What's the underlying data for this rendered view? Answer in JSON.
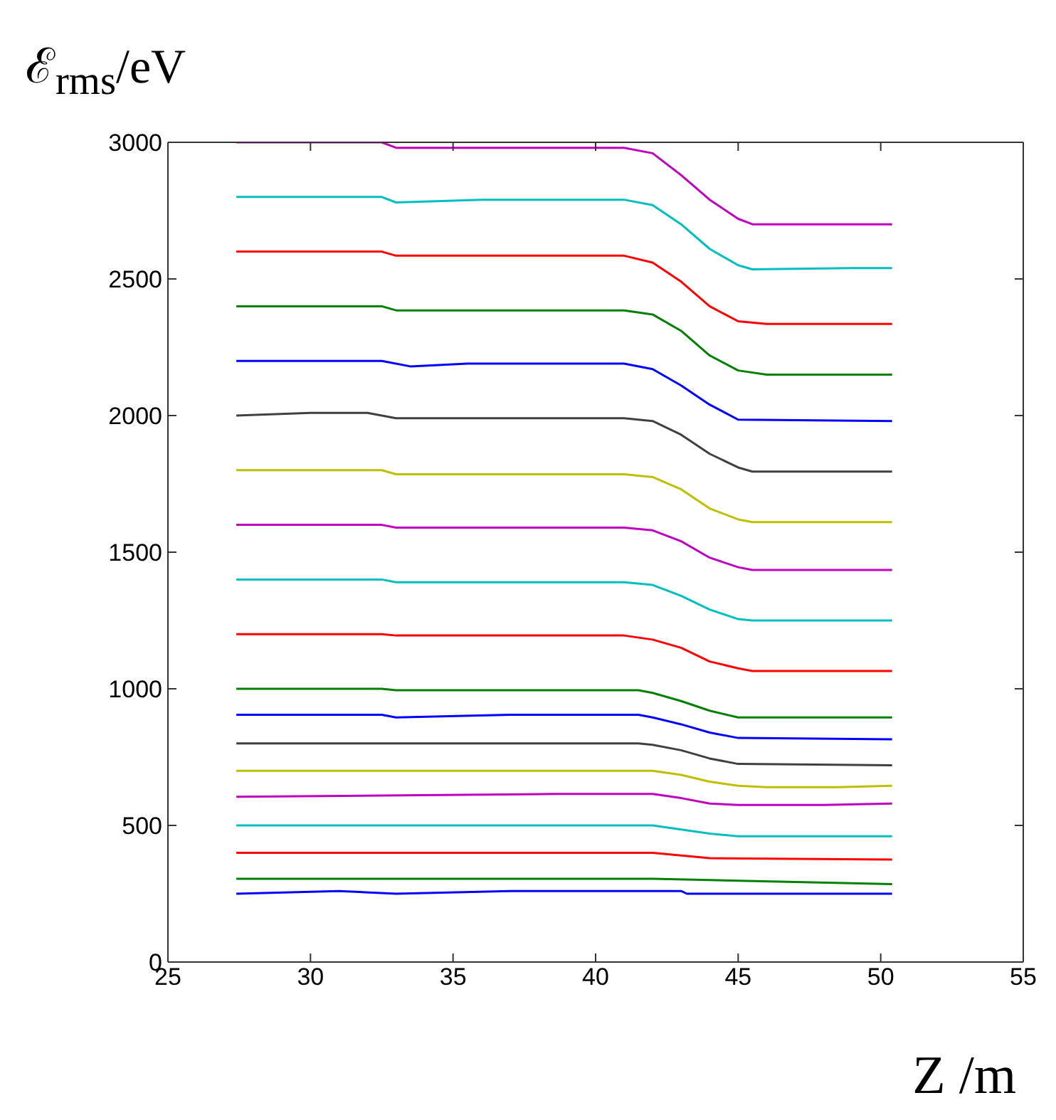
{
  "chart_data": {
    "type": "line",
    "ylabel": "ℰ$_{rms}$/eV",
    "xlabel": "Z /m",
    "xlim": [
      25,
      55
    ],
    "xticks": [
      25,
      30,
      35,
      40,
      45,
      50,
      55
    ],
    "ylim": [
      0,
      3000
    ],
    "yticks": [
      0,
      500,
      1000,
      1500,
      2000,
      2500,
      3000
    ],
    "marker": "none",
    "line_style": "solid",
    "series": [
      {
        "color": "#bf00bf",
        "x": [
          27.4,
          32.5,
          33,
          41,
          42,
          43,
          44,
          45,
          45.5,
          50.4
        ],
        "values": [
          3000,
          3000,
          2980,
          2980,
          2960,
          2880,
          2790,
          2720,
          2700,
          2700
        ]
      },
      {
        "color": "#00bfbf",
        "x": [
          27.4,
          32.5,
          33,
          36,
          41,
          42,
          43,
          44,
          45,
          45.5,
          49,
          50.4
        ],
        "values": [
          2800,
          2800,
          2780,
          2790,
          2790,
          2770,
          2700,
          2610,
          2550,
          2535,
          2540,
          2540
        ]
      },
      {
        "color": "#ff0000",
        "x": [
          27.4,
          32.5,
          33,
          41,
          42,
          43,
          44,
          45,
          46,
          50.4
        ],
        "values": [
          2600,
          2600,
          2585,
          2585,
          2560,
          2490,
          2400,
          2345,
          2335,
          2335
        ]
      },
      {
        "color": "#008000",
        "x": [
          27.4,
          32.5,
          33,
          41,
          42,
          43,
          44,
          45,
          46,
          50.4
        ],
        "values": [
          2400,
          2400,
          2385,
          2385,
          2370,
          2310,
          2220,
          2165,
          2150,
          2150
        ]
      },
      {
        "color": "#0000ff",
        "x": [
          27.4,
          32.5,
          33.5,
          35.5,
          41,
          42,
          43,
          44,
          45,
          50.4
        ],
        "values": [
          2200,
          2200,
          2180,
          2190,
          2190,
          2170,
          2110,
          2040,
          1985,
          1980
        ]
      },
      {
        "color": "#404040",
        "x": [
          27.4,
          30,
          32,
          33,
          41,
          42,
          43,
          44,
          45,
          45.5,
          50.4
        ],
        "values": [
          2000,
          2010,
          2010,
          1990,
          1990,
          1980,
          1930,
          1860,
          1810,
          1795,
          1795
        ]
      },
      {
        "color": "#bfbf00",
        "x": [
          27.4,
          32.5,
          33,
          41,
          42,
          43,
          44,
          45,
          45.5,
          50.4
        ],
        "values": [
          1800,
          1800,
          1785,
          1785,
          1775,
          1730,
          1660,
          1620,
          1610,
          1610
        ]
      },
      {
        "color": "#bf00bf",
        "x": [
          27.4,
          32.5,
          33,
          41,
          42,
          43,
          44,
          45,
          45.5,
          50.4
        ],
        "values": [
          1600,
          1600,
          1590,
          1590,
          1580,
          1540,
          1480,
          1445,
          1435,
          1435
        ]
      },
      {
        "color": "#00bfbf",
        "x": [
          27.4,
          32.5,
          33,
          41,
          42,
          43,
          44,
          45,
          45.5,
          50.4
        ],
        "values": [
          1400,
          1400,
          1390,
          1390,
          1380,
          1340,
          1290,
          1255,
          1250,
          1250
        ]
      },
      {
        "color": "#ff0000",
        "x": [
          27.4,
          32.5,
          33,
          41,
          42,
          43,
          44,
          45,
          45.5,
          50.4
        ],
        "values": [
          1200,
          1200,
          1195,
          1195,
          1180,
          1150,
          1100,
          1075,
          1065,
          1065
        ]
      },
      {
        "color": "#008000",
        "x": [
          27.4,
          32.5,
          33,
          41.5,
          42,
          43,
          44,
          45,
          50.4
        ],
        "values": [
          1000,
          1000,
          995,
          995,
          985,
          955,
          920,
          895,
          895
        ]
      },
      {
        "color": "#0000ff",
        "x": [
          27.4,
          32.5,
          33,
          37,
          41.5,
          42,
          43,
          44,
          45,
          50.4
        ],
        "values": [
          905,
          905,
          895,
          905,
          905,
          895,
          870,
          840,
          820,
          815
        ]
      },
      {
        "color": "#404040",
        "x": [
          27.4,
          41.5,
          42,
          43,
          44,
          45,
          50.4
        ],
        "values": [
          800,
          800,
          795,
          775,
          745,
          725,
          720
        ]
      },
      {
        "color": "#bfbf00",
        "x": [
          27.4,
          42,
          43,
          44,
          45,
          46,
          48.5,
          50.4
        ],
        "values": [
          700,
          700,
          685,
          660,
          645,
          640,
          640,
          645
        ]
      },
      {
        "color": "#bf00bf",
        "x": [
          27.4,
          38.5,
          42,
          43,
          44,
          45,
          48,
          50.4
        ],
        "values": [
          605,
          615,
          615,
          600,
          580,
          575,
          575,
          580
        ]
      },
      {
        "color": "#00bfbf",
        "x": [
          27.4,
          42,
          43,
          44,
          45,
          50.4
        ],
        "values": [
          500,
          500,
          485,
          470,
          460,
          460
        ]
      },
      {
        "color": "#ff0000",
        "x": [
          27.4,
          42,
          43,
          44,
          50.4
        ],
        "values": [
          400,
          400,
          390,
          380,
          375
        ]
      },
      {
        "color": "#008000",
        "x": [
          27.4,
          42,
          44,
          50.4
        ],
        "values": [
          305,
          305,
          300,
          285
        ]
      },
      {
        "color": "#0000ff",
        "x": [
          27.4,
          31,
          33,
          37,
          43,
          43.2,
          50.4
        ],
        "values": [
          250,
          260,
          250,
          260,
          260,
          250,
          250
        ]
      }
    ]
  }
}
